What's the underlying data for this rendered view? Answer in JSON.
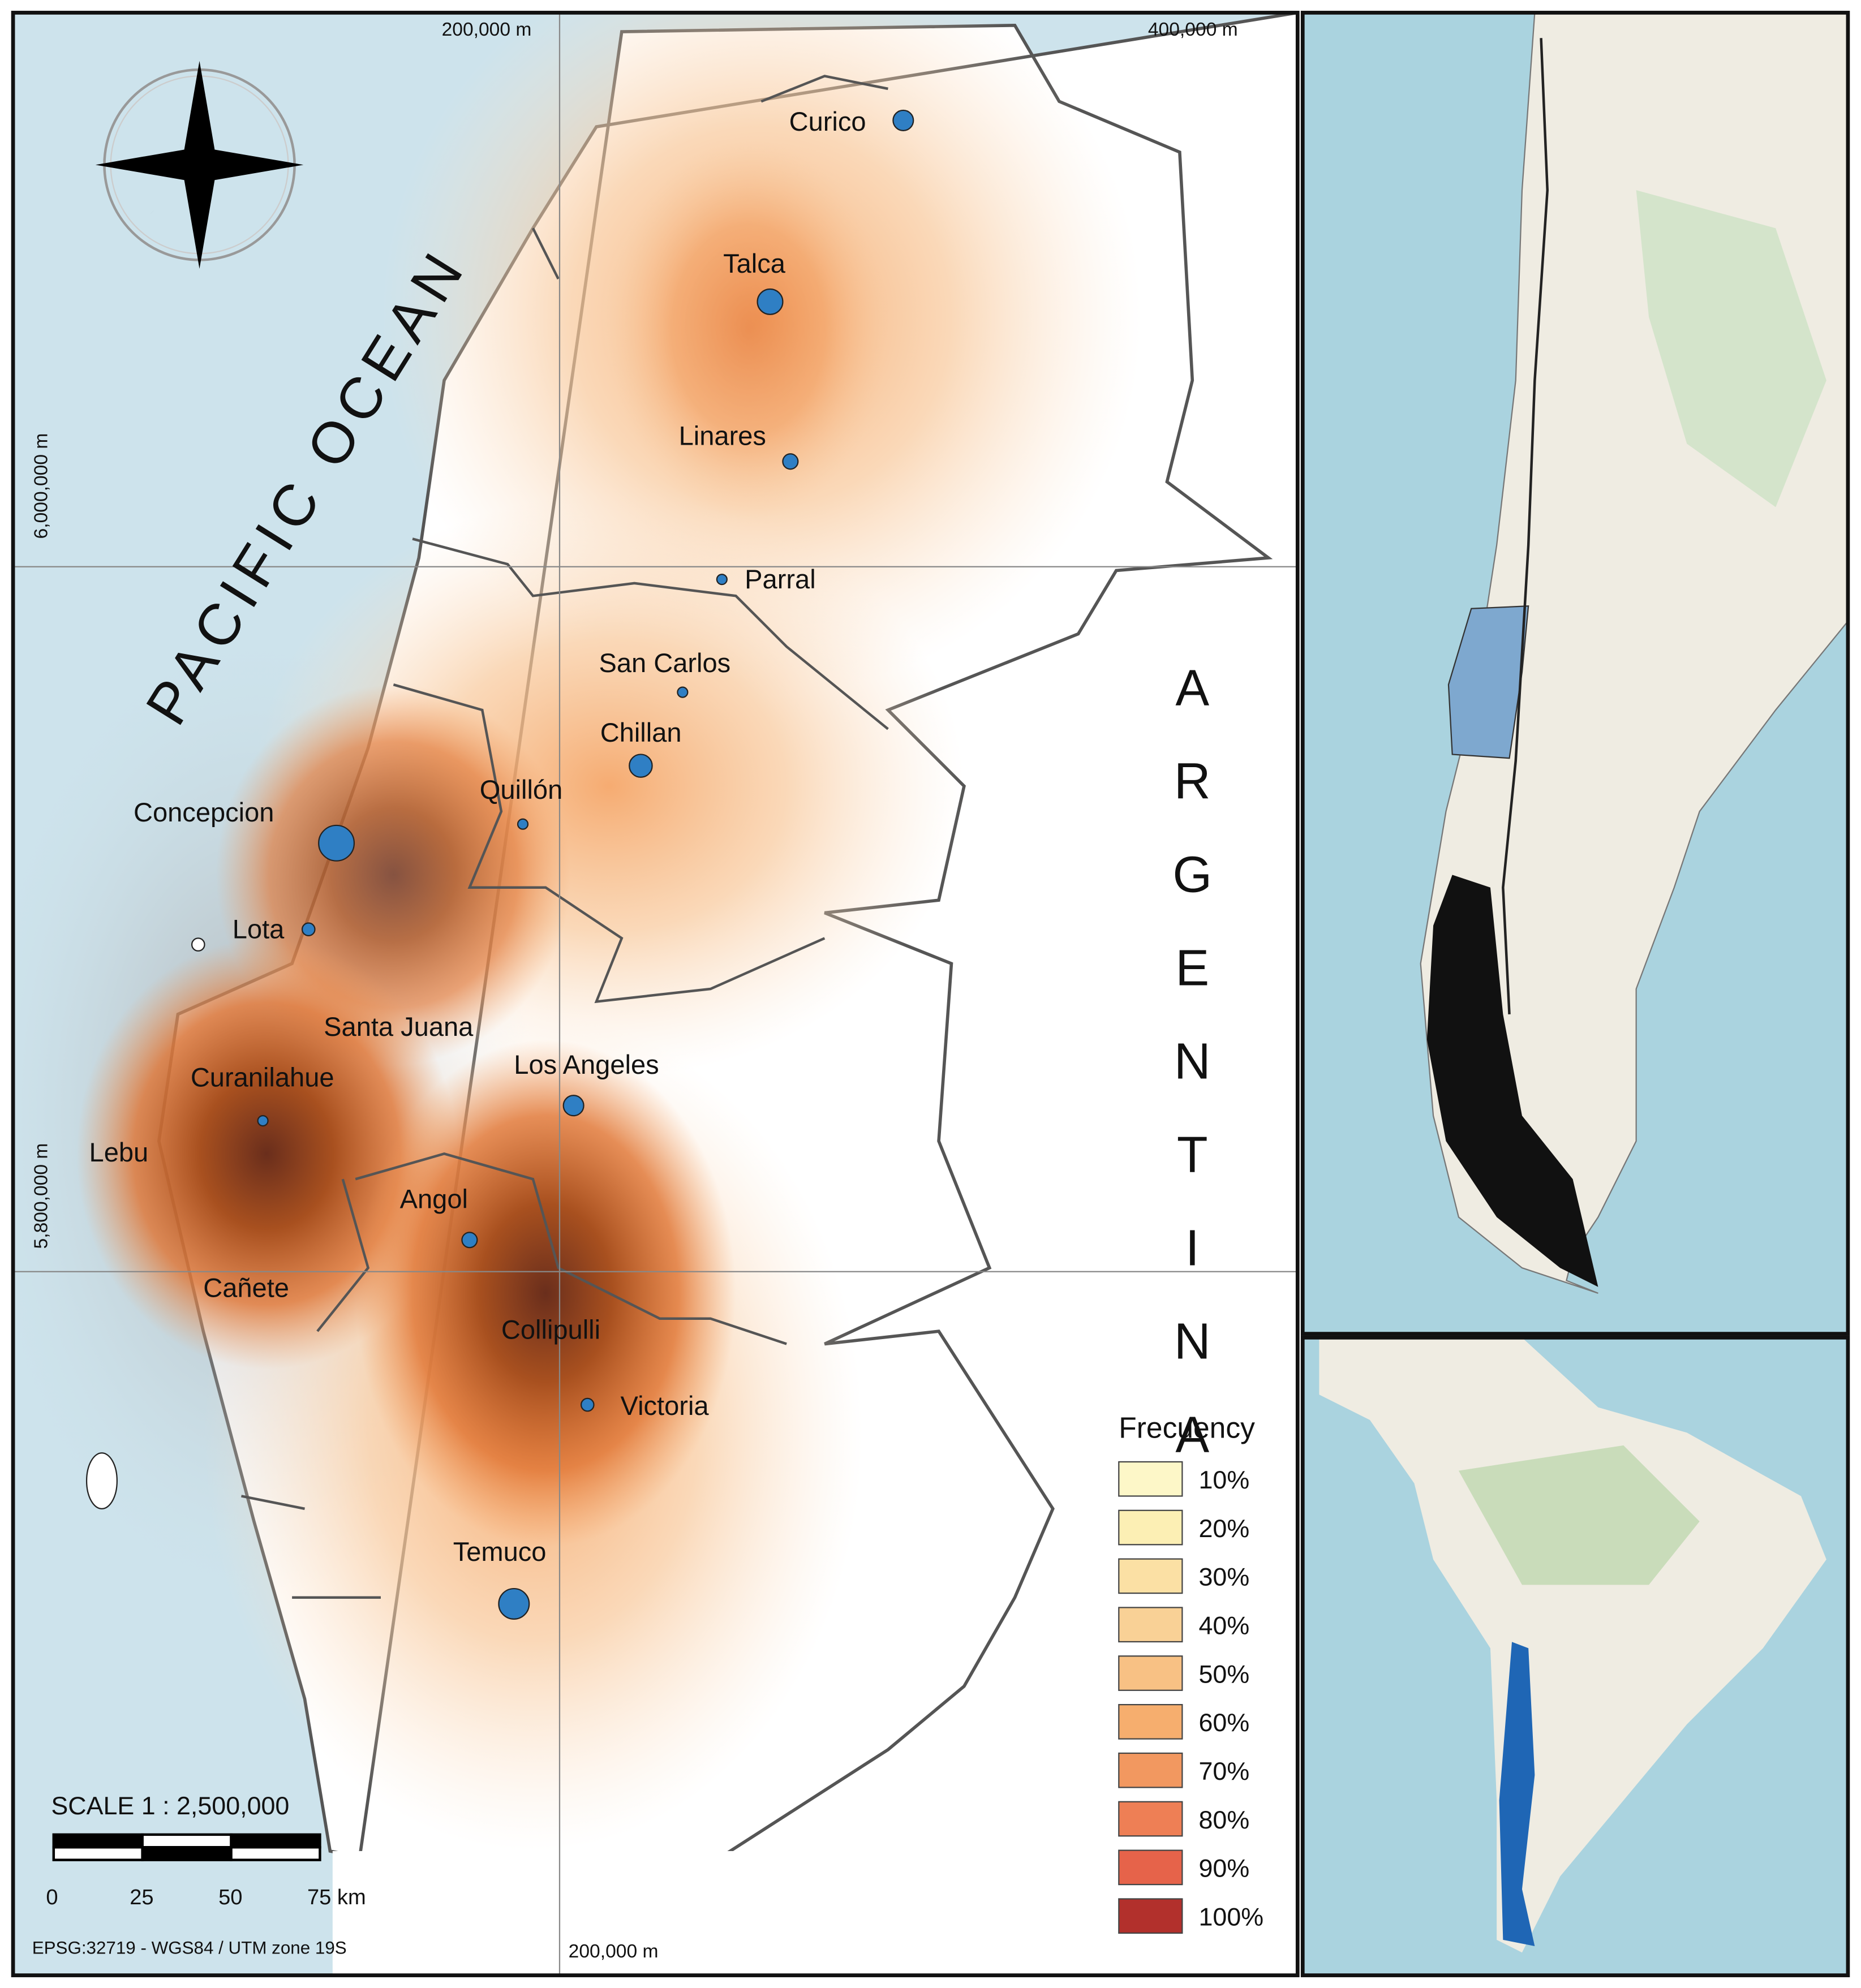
{
  "map": {
    "grid_labels": {
      "top_left": "200,000 m",
      "top_right": "400,000 m",
      "left_upper": "6,000,000 m",
      "left_lower": "5,800,000 m",
      "bottom": "200,000 m"
    },
    "ocean_label": "PACIFIC OCEAN",
    "country_label": "ARGENTINA",
    "cities": [
      "Curico",
      "Talca",
      "Linares",
      "Parral",
      "San Carlos",
      "Chillan",
      "Quillón",
      "Concepcion",
      "Lota",
      "Santa Juana",
      "Curanilahue",
      "Los Angeles",
      "Lebu",
      "Angol",
      "Cañete",
      "Collipulli",
      "Victoria",
      "Temuco"
    ],
    "legend": {
      "title": "Frecuency",
      "items": [
        {
          "label": "10%",
          "color": "#fdf7c8"
        },
        {
          "label": "20%",
          "color": "#fcefb4"
        },
        {
          "label": "30%",
          "color": "#fbe0a4"
        },
        {
          "label": "40%",
          "color": "#f9d196"
        },
        {
          "label": "50%",
          "color": "#f8c184"
        },
        {
          "label": "60%",
          "color": "#f6ae6e"
        },
        {
          "label": "70%",
          "color": "#f29860"
        },
        {
          "label": "80%",
          "color": "#ee7f55"
        },
        {
          "label": "90%",
          "color": "#e6634a"
        },
        {
          "label": "100%",
          "color": "#b2302c"
        }
      ]
    },
    "scale": {
      "title": "SCALE  1 : 2,500,000",
      "ticks": [
        "0",
        "25",
        "50",
        "75 km"
      ]
    },
    "projection": "EPSG:32719 - WGS84 / UTM zone 19S"
  }
}
